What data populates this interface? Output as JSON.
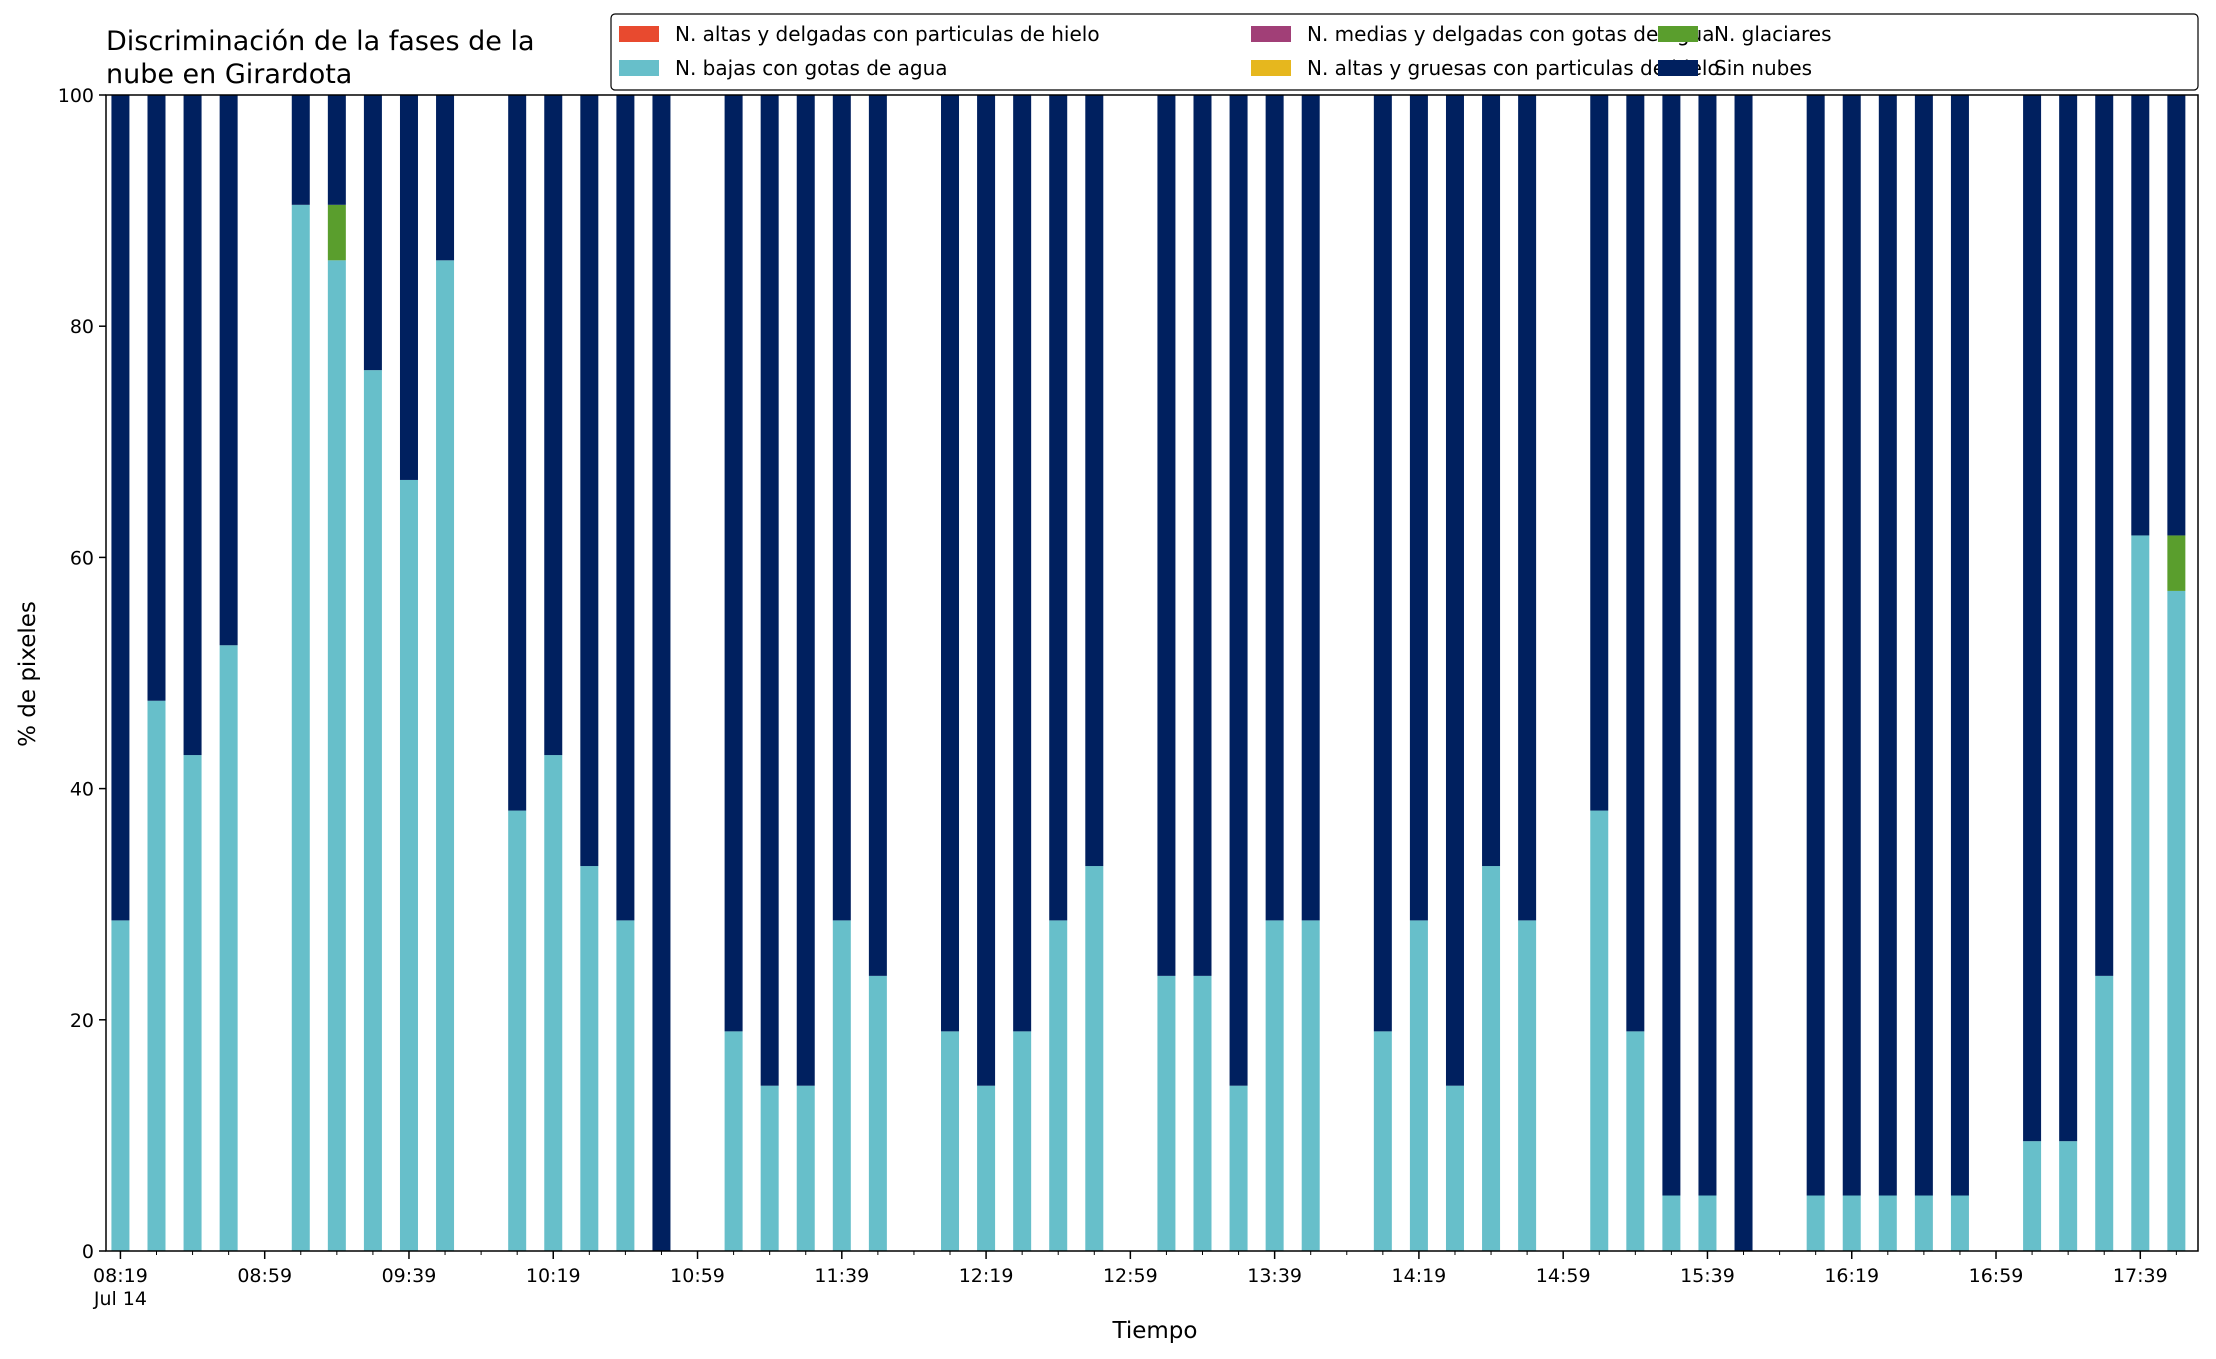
{
  "chart_data": {
    "type": "bar",
    "stacked": true,
    "title": "Discriminación de la fases de la\nnube en Girardota",
    "xlabel": "Tiempo",
    "ylabel": "% de pixeles",
    "ylim": [
      0,
      100
    ],
    "yticks": [
      0,
      20,
      40,
      60,
      80,
      100
    ],
    "xlim_minutes": [
      495,
      1075
    ],
    "xtick_labels": [
      "08:19",
      "08:59",
      "09:39",
      "10:19",
      "10:59",
      "11:39",
      "12:19",
      "12:59",
      "13:39",
      "14:19",
      "14:59",
      "15:39",
      "16:19",
      "16:59",
      "17:39"
    ],
    "date_label": "Jul 14",
    "legend_position": "top-right",
    "grid": false,
    "series": [
      {
        "name": "N. altas y delgadas con particulas de hielo",
        "color": "#e84a2f"
      },
      {
        "name": "N. altas y gruesas con particulas de hielo",
        "color": "#e6b71e"
      },
      {
        "name": "N. medias y delgadas con gotas de agua",
        "color": "#a13f77"
      },
      {
        "name": "N. bajas con gotas de agua",
        "color": "#67bfca"
      },
      {
        "name": "N. glaciares",
        "color": "#5a9e2d"
      },
      {
        "name": "Sin nubes",
        "color": "#00205f"
      }
    ],
    "legend_order": [
      0,
      3,
      2,
      1,
      4,
      5
    ],
    "bars": [
      {
        "time": "08:19",
        "low_water": 28.6,
        "glacier": 0,
        "clear": 71.4
      },
      {
        "time": "08:29",
        "low_water": 47.6,
        "glacier": 0,
        "clear": 52.4
      },
      {
        "time": "08:39",
        "low_water": 42.9,
        "glacier": 0,
        "clear": 57.1
      },
      {
        "time": "08:49",
        "low_water": 52.4,
        "glacier": 0,
        "clear": 47.6
      },
      {
        "time": "09:09",
        "low_water": 90.5,
        "glacier": 0,
        "clear": 9.5
      },
      {
        "time": "09:19",
        "low_water": 85.7,
        "glacier": 4.8,
        "clear": 9.5
      },
      {
        "time": "09:29",
        "low_water": 76.2,
        "glacier": 0,
        "clear": 23.8
      },
      {
        "time": "09:39",
        "low_water": 66.7,
        "glacier": 0,
        "clear": 33.3
      },
      {
        "time": "09:49",
        "low_water": 85.7,
        "glacier": 0,
        "clear": 14.3
      },
      {
        "time": "10:09",
        "low_water": 38.1,
        "glacier": 0,
        "clear": 61.9
      },
      {
        "time": "10:19",
        "low_water": 42.9,
        "glacier": 0,
        "clear": 57.1
      },
      {
        "time": "10:29",
        "low_water": 33.3,
        "glacier": 0,
        "clear": 66.7
      },
      {
        "time": "10:39",
        "low_water": 28.6,
        "glacier": 0,
        "clear": 71.4
      },
      {
        "time": "10:49",
        "low_water": 0,
        "glacier": 0,
        "clear": 100
      },
      {
        "time": "11:09",
        "low_water": 19.0,
        "glacier": 0,
        "clear": 81.0
      },
      {
        "time": "11:19",
        "low_water": 14.3,
        "glacier": 0,
        "clear": 85.7
      },
      {
        "time": "11:29",
        "low_water": 14.3,
        "glacier": 0,
        "clear": 85.7
      },
      {
        "time": "11:39",
        "low_water": 28.6,
        "glacier": 0,
        "clear": 71.4
      },
      {
        "time": "11:49",
        "low_water": 23.8,
        "glacier": 0,
        "clear": 76.2
      },
      {
        "time": "12:09",
        "low_water": 19.0,
        "glacier": 0,
        "clear": 81.0
      },
      {
        "time": "12:19",
        "low_water": 14.3,
        "glacier": 0,
        "clear": 85.7
      },
      {
        "time": "12:29",
        "low_water": 19.0,
        "glacier": 0,
        "clear": 81.0
      },
      {
        "time": "12:39",
        "low_water": 28.6,
        "glacier": 0,
        "clear": 71.4
      },
      {
        "time": "12:49",
        "low_water": 33.3,
        "glacier": 0,
        "clear": 66.7
      },
      {
        "time": "13:09",
        "low_water": 23.8,
        "glacier": 0,
        "clear": 76.2
      },
      {
        "time": "13:19",
        "low_water": 23.8,
        "glacier": 0,
        "clear": 76.2
      },
      {
        "time": "13:29",
        "low_water": 14.3,
        "glacier": 0,
        "clear": 85.7
      },
      {
        "time": "13:39",
        "low_water": 28.6,
        "glacier": 0,
        "clear": 71.4
      },
      {
        "time": "13:49",
        "low_water": 28.6,
        "glacier": 0,
        "clear": 71.4
      },
      {
        "time": "14:09",
        "low_water": 19.0,
        "glacier": 0,
        "clear": 81.0
      },
      {
        "time": "14:19",
        "low_water": 28.6,
        "glacier": 0,
        "clear": 71.4
      },
      {
        "time": "14:29",
        "low_water": 14.3,
        "glacier": 0,
        "clear": 85.7
      },
      {
        "time": "14:39",
        "low_water": 33.3,
        "glacier": 0,
        "clear": 66.7
      },
      {
        "time": "14:49",
        "low_water": 28.6,
        "glacier": 0,
        "clear": 71.4
      },
      {
        "time": "15:09",
        "low_water": 38.1,
        "glacier": 0,
        "clear": 61.9
      },
      {
        "time": "15:19",
        "low_water": 19.0,
        "glacier": 0,
        "clear": 81.0
      },
      {
        "time": "15:29",
        "low_water": 4.8,
        "glacier": 0,
        "clear": 95.2
      },
      {
        "time": "15:39",
        "low_water": 4.8,
        "glacier": 0,
        "clear": 95.2
      },
      {
        "time": "15:49",
        "low_water": 0,
        "glacier": 0,
        "clear": 100
      },
      {
        "time": "16:09",
        "low_water": 4.8,
        "glacier": 0,
        "clear": 95.2
      },
      {
        "time": "16:19",
        "low_water": 4.8,
        "glacier": 0,
        "clear": 95.2
      },
      {
        "time": "16:29",
        "low_water": 4.8,
        "glacier": 0,
        "clear": 95.2
      },
      {
        "time": "16:39",
        "low_water": 4.8,
        "glacier": 0,
        "clear": 95.2
      },
      {
        "time": "16:49",
        "low_water": 4.8,
        "glacier": 0,
        "clear": 95.2
      },
      {
        "time": "17:09",
        "low_water": 9.5,
        "glacier": 0,
        "clear": 90.5
      },
      {
        "time": "17:19",
        "low_water": 9.5,
        "glacier": 0,
        "clear": 90.5
      },
      {
        "time": "17:29",
        "low_water": 23.8,
        "glacier": 0,
        "clear": 76.2
      },
      {
        "time": "17:39",
        "low_water": 61.9,
        "glacier": 0,
        "clear": 38.1
      },
      {
        "time": "17:49",
        "low_water": 57.1,
        "glacier": 4.8,
        "clear": 38.1
      }
    ]
  }
}
